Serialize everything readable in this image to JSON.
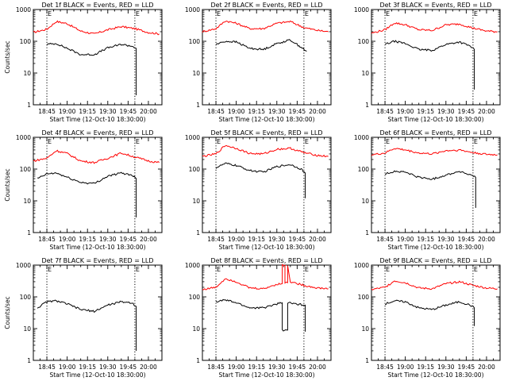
{
  "chart_data": [
    {
      "type": "line",
      "title": "Det 1f BLACK = Events, RED = LLD",
      "xlabel": "Start Time (12-Oct-10 18:30:00)",
      "ylabel": "Counts/sec",
      "yscale": "log",
      "ylim": [
        1,
        1000
      ],
      "xlim": [
        "18:35",
        "20:10"
      ],
      "xticks": [
        "18:45",
        "19:00",
        "19:15",
        "19:30",
        "19:45",
        "20:00"
      ],
      "yticks": [
        "1",
        "10",
        "100",
        "1000"
      ],
      "markers": [
        {
          "label": "E",
          "time": "18:45"
        },
        {
          "label": "E",
          "time": "19:50"
        }
      ],
      "grid": false,
      "series": [
        {
          "color": "#ff0000",
          "t": [
            "18:35",
            "18:45",
            "18:52",
            "19:00",
            "19:10",
            "19:20",
            "19:30",
            "19:40",
            "19:50",
            "20:00",
            "20:08"
          ],
          "values": [
            190,
            240,
            420,
            360,
            210,
            170,
            230,
            290,
            250,
            190,
            170
          ]
        },
        {
          "color": "#000000",
          "t": [
            "18:45",
            "18:52",
            "19:00",
            "19:10",
            "19:20",
            "19:30",
            "19:40",
            "19:48",
            "19:51",
            "19:51"
          ],
          "values": [
            80,
            85,
            60,
            38,
            38,
            62,
            80,
            70,
            60,
            2
          ]
        }
      ]
    },
    {
      "type": "line",
      "title": "Det 2f BLACK = Events, RED = LLD",
      "xlabel": "Start Time (12-Oct-10 18:30:00)",
      "ylabel": "",
      "yscale": "log",
      "ylim": [
        1,
        1000
      ],
      "xlim": [
        "18:35",
        "20:10"
      ],
      "xticks": [
        "18:45",
        "19:00",
        "19:15",
        "19:30",
        "19:45",
        "20:00"
      ],
      "yticks": [
        "1",
        "10",
        "100",
        "1000"
      ],
      "markers": [
        {
          "label": "E",
          "time": "18:45"
        },
        {
          "label": "E",
          "time": "19:50"
        }
      ],
      "grid": false,
      "series": [
        {
          "color": "#ff0000",
          "t": [
            "18:35",
            "18:45",
            "18:52",
            "19:00",
            "19:10",
            "19:20",
            "19:30",
            "19:40",
            "19:50",
            "20:00",
            "20:08"
          ],
          "values": [
            200,
            250,
            440,
            370,
            250,
            250,
            370,
            420,
            270,
            220,
            200
          ]
        },
        {
          "color": "#000000",
          "t": [
            "18:45",
            "18:52",
            "19:00",
            "19:10",
            "19:20",
            "19:30",
            "19:40",
            "19:48",
            "19:52"
          ],
          "values": [
            80,
            100,
            95,
            60,
            55,
            85,
            110,
            65,
            48
          ]
        }
      ]
    },
    {
      "type": "line",
      "title": "Det 3f BLACK = Events, RED = LLD",
      "xlabel": "Start Time (12-Oct-10 18:30:00)",
      "ylabel": "",
      "yscale": "log",
      "ylim": [
        1,
        1000
      ],
      "xlim": [
        "18:35",
        "20:10"
      ],
      "xticks": [
        "18:45",
        "19:00",
        "19:15",
        "19:30",
        "19:45",
        "20:00"
      ],
      "yticks": [
        "1",
        "10",
        "100",
        "1000"
      ],
      "markers": [
        {
          "label": "E",
          "time": "18:45"
        },
        {
          "label": "E",
          "time": "19:50"
        }
      ],
      "grid": false,
      "series": [
        {
          "color": "#ff0000",
          "t": [
            "18:35",
            "18:45",
            "18:52",
            "19:00",
            "19:10",
            "19:20",
            "19:30",
            "19:40",
            "19:50",
            "20:00",
            "20:08"
          ],
          "values": [
            180,
            230,
            380,
            330,
            230,
            220,
            330,
            350,
            260,
            210,
            200
          ]
        },
        {
          "color": "#000000",
          "t": [
            "18:45",
            "18:52",
            "19:00",
            "19:10",
            "19:20",
            "19:30",
            "19:40",
            "19:48",
            "19:51",
            "19:51"
          ],
          "values": [
            80,
            100,
            85,
            55,
            52,
            80,
            95,
            70,
            55,
            3
          ]
        }
      ]
    },
    {
      "type": "line",
      "title": "Det 4f BLACK = Events, RED = LLD",
      "xlabel": "Start Time (12-Oct-10 18:30:00)",
      "ylabel": "Counts/sec",
      "yscale": "log",
      "ylim": [
        1,
        1000
      ],
      "xlim": [
        "18:35",
        "20:10"
      ],
      "xticks": [
        "18:45",
        "19:00",
        "19:15",
        "19:30",
        "19:45",
        "20:00"
      ],
      "yticks": [
        "1",
        "10",
        "100",
        "1000"
      ],
      "markers": [
        {
          "label": "E",
          "time": "18:45"
        },
        {
          "label": "E",
          "time": "19:50"
        }
      ],
      "grid": false,
      "series": [
        {
          "color": "#ff0000",
          "t": [
            "18:35",
            "18:45",
            "18:52",
            "19:00",
            "19:10",
            "19:20",
            "19:30",
            "19:40",
            "19:50",
            "20:00",
            "20:08"
          ],
          "values": [
            180,
            220,
            380,
            310,
            180,
            160,
            220,
            320,
            240,
            180,
            160
          ]
        },
        {
          "color": "#000000",
          "t": [
            "18:38",
            "18:45",
            "18:52",
            "19:00",
            "19:10",
            "19:20",
            "19:30",
            "19:40",
            "19:48",
            "19:51",
            "19:51"
          ],
          "values": [
            50,
            70,
            75,
            55,
            38,
            35,
            60,
            75,
            65,
            50,
            3
          ]
        }
      ]
    },
    {
      "type": "line",
      "title": "Det 5f BLACK = Events, RED = LLD",
      "xlabel": "Start Time (12-Oct-10 18:30:00)",
      "ylabel": "",
      "yscale": "log",
      "ylim": [
        1,
        1000
      ],
      "xlim": [
        "18:35",
        "20:10"
      ],
      "xticks": [
        "18:45",
        "19:00",
        "19:15",
        "19:30",
        "19:45",
        "20:00"
      ],
      "yticks": [
        "1",
        "10",
        "100",
        "1000"
      ],
      "markers": [
        {
          "label": "E",
          "time": "18:45"
        },
        {
          "label": "E",
          "time": "19:50"
        }
      ],
      "grid": false,
      "series": [
        {
          "color": "#ff0000",
          "t": [
            "18:35",
            "18:45",
            "18:52",
            "19:00",
            "19:10",
            "19:20",
            "19:30",
            "19:40",
            "19:50",
            "20:00",
            "20:08"
          ],
          "values": [
            250,
            300,
            560,
            450,
            310,
            300,
            420,
            450,
            330,
            270,
            250
          ]
        },
        {
          "color": "#000000",
          "t": [
            "18:45",
            "18:52",
            "19:00",
            "19:10",
            "19:20",
            "19:30",
            "19:40",
            "19:48",
            "19:51",
            "19:51"
          ],
          "values": [
            110,
            150,
            130,
            90,
            80,
            120,
            140,
            100,
            75,
            12
          ]
        }
      ]
    },
    {
      "type": "line",
      "title": "Det 6f BLACK = Events, RED = LLD",
      "xlabel": "Start Time (12-Oct-10 18:30:00)",
      "ylabel": "",
      "yscale": "log",
      "ylim": [
        1,
        1000
      ],
      "xlim": [
        "18:35",
        "20:10"
      ],
      "xticks": [
        "18:45",
        "19:00",
        "19:15",
        "19:30",
        "19:45",
        "20:00"
      ],
      "yticks": [
        "1",
        "10",
        "100",
        "1000"
      ],
      "markers": [
        {
          "label": "E",
          "time": "18:45"
        },
        {
          "label": "E",
          "time": "19:50"
        }
      ],
      "grid": false,
      "series": [
        {
          "color": "#ff0000",
          "t": [
            "18:35",
            "18:45",
            "18:52",
            "19:00",
            "19:10",
            "19:20",
            "19:30",
            "19:40",
            "19:50",
            "20:00",
            "20:08"
          ],
          "values": [
            280,
            320,
            450,
            400,
            320,
            300,
            380,
            400,
            330,
            290,
            280
          ]
        },
        {
          "color": "#000000",
          "t": [
            "18:45",
            "18:52",
            "19:00",
            "19:10",
            "19:20",
            "19:30",
            "19:40",
            "19:48",
            "19:52",
            "19:52"
          ],
          "values": [
            70,
            85,
            80,
            55,
            48,
            65,
            85,
            65,
            55,
            6
          ]
        }
      ]
    },
    {
      "type": "line",
      "title": "Det 7f BLACK = Events, RED = LLD",
      "xlabel": "Start Time (12-Oct-10 18:30:00)",
      "ylabel": "Counts/sec",
      "yscale": "log",
      "ylim": [
        1,
        1000
      ],
      "xlim": [
        "18:35",
        "20:10"
      ],
      "xticks": [
        "18:45",
        "19:00",
        "19:15",
        "19:30",
        "19:45",
        "20:00"
      ],
      "yticks": [
        "1",
        "10",
        "100",
        "1000"
      ],
      "markers": [
        {
          "label": "E",
          "time": "18:45"
        },
        {
          "label": "E",
          "time": "19:50"
        }
      ],
      "grid": false,
      "series": [
        {
          "color": "#000000",
          "t": [
            "18:38",
            "18:45",
            "18:52",
            "19:00",
            "19:10",
            "19:20",
            "19:30",
            "19:40",
            "19:48",
            "19:51",
            "19:51"
          ],
          "values": [
            45,
            70,
            75,
            60,
            40,
            35,
            55,
            70,
            65,
            50,
            2
          ]
        }
      ]
    },
    {
      "type": "line",
      "title": "Det 8f BLACK = Events, RED = LLD",
      "xlabel": "Start Time (12-Oct-10 18:30:00)",
      "ylabel": "",
      "yscale": "log",
      "ylim": [
        1,
        1000
      ],
      "xlim": [
        "18:35",
        "20:10"
      ],
      "xticks": [
        "18:45",
        "19:00",
        "19:15",
        "19:30",
        "19:45",
        "20:00"
      ],
      "yticks": [
        "1",
        "10",
        "100",
        "1000"
      ],
      "markers": [
        {
          "label": "E",
          "time": "18:45"
        },
        {
          "label": "E",
          "time": "19:50"
        }
      ],
      "grid": false,
      "series": [
        {
          "color": "#ff0000",
          "t": [
            "18:35",
            "18:45",
            "18:52",
            "19:00",
            "19:10",
            "19:20",
            "19:30",
            "19:34",
            "19:34",
            "19:36",
            "19:36",
            "19:38",
            "19:38",
            "19:40",
            "19:50",
            "20:00",
            "20:08"
          ],
          "values": [
            170,
            200,
            380,
            300,
            190,
            180,
            250,
            260,
            1000,
            1000,
            280,
            280,
            1000,
            300,
            230,
            190,
            180
          ]
        },
        {
          "color": "#000000",
          "t": [
            "18:45",
            "18:52",
            "19:00",
            "19:10",
            "19:20",
            "19:30",
            "19:34",
            "19:34",
            "19:38",
            "19:38",
            "19:44",
            "19:51",
            "19:51"
          ],
          "values": [
            70,
            80,
            65,
            45,
            45,
            60,
            65,
            9,
            9,
            65,
            60,
            55,
            8
          ]
        }
      ]
    },
    {
      "type": "line",
      "title": "Det 9f BLACK = Events, RED = LLD",
      "xlabel": "Start Time (12-Oct-10 18:30:00)",
      "ylabel": "",
      "yscale": "log",
      "ylim": [
        1,
        1000
      ],
      "xlim": [
        "18:35",
        "20:10"
      ],
      "xticks": [
        "18:45",
        "19:00",
        "19:15",
        "19:30",
        "19:45",
        "20:00"
      ],
      "yticks": [
        "1",
        "10",
        "100",
        "1000"
      ],
      "markers": [
        {
          "label": "E",
          "time": "18:45"
        },
        {
          "label": "E",
          "time": "19:50"
        }
      ],
      "grid": false,
      "series": [
        {
          "color": "#ff0000",
          "t": [
            "18:35",
            "18:45",
            "18:52",
            "19:00",
            "19:10",
            "19:20",
            "19:30",
            "19:40",
            "19:50",
            "20:00",
            "20:08"
          ],
          "values": [
            170,
            200,
            320,
            280,
            190,
            180,
            260,
            300,
            230,
            190,
            180
          ]
        },
        {
          "color": "#000000",
          "t": [
            "18:45",
            "18:52",
            "19:00",
            "19:10",
            "19:20",
            "19:30",
            "19:40",
            "19:48",
            "19:51",
            "19:51"
          ],
          "values": [
            60,
            75,
            70,
            45,
            40,
            55,
            70,
            55,
            45,
            12
          ]
        }
      ]
    }
  ]
}
